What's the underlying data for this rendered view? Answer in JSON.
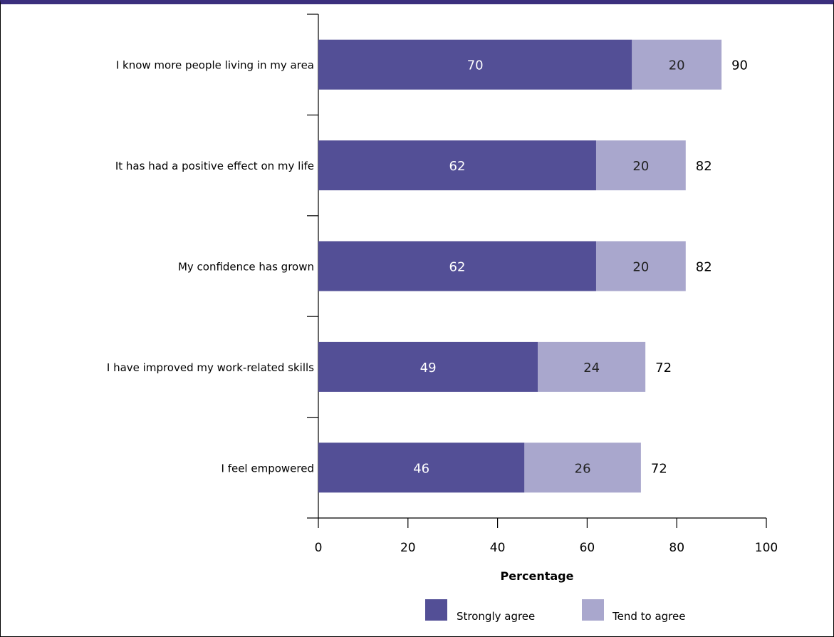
{
  "chart_data": {
    "type": "bar",
    "orientation": "horizontal",
    "stacked": true,
    "categories": [
      "I know more people living in my area",
      "It has had a positive effect on my life",
      "My confidence has grown",
      "I have improved my work-related skills",
      "I feel empowered"
    ],
    "series": [
      {
        "name": "Strongly agree",
        "values": [
          70,
          62,
          62,
          49,
          46
        ],
        "color": "#534f96",
        "label_color": "#ffffff"
      },
      {
        "name": "Tend to agree",
        "values": [
          20,
          20,
          20,
          24,
          26
        ],
        "color": "#a9a7cd",
        "label_color": "#222222"
      }
    ],
    "totals": [
      90,
      82,
      82,
      72,
      72
    ],
    "xlabel": "Percentage",
    "ylabel": "",
    "title": "",
    "xlim": [
      0,
      100
    ],
    "xticks": [
      0,
      20,
      40,
      60,
      80,
      100
    ],
    "grid": false,
    "legend": "bottom"
  }
}
